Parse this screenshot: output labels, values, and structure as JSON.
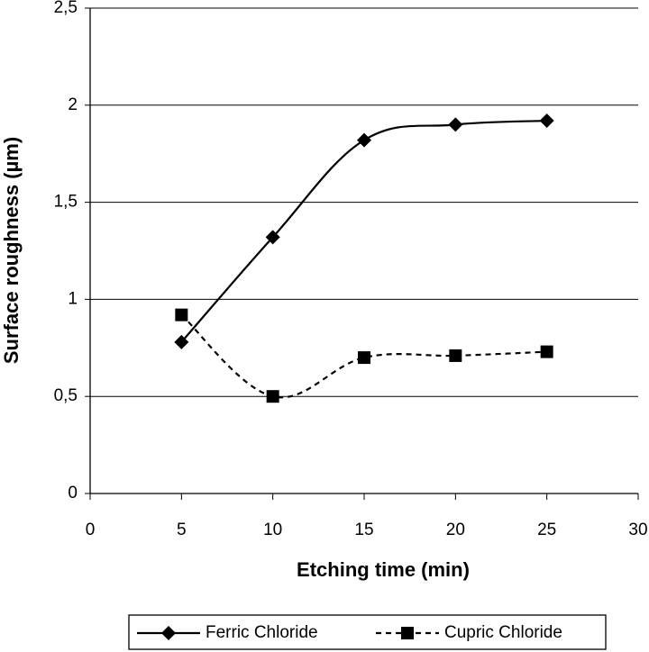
{
  "chart_data": {
    "type": "line",
    "x_label": "Etching time (min)",
    "y_label": "Surface roughness (µm)",
    "x": [
      5,
      10,
      15,
      20,
      25
    ],
    "series": [
      {
        "name": "Ferric Chloride",
        "color": "#000000",
        "values": [
          0.78,
          1.32,
          1.82,
          1.9,
          1.92
        ],
        "marker": "diamond",
        "linestyle": "solid"
      },
      {
        "name": "Cupric Chloride",
        "color": "#000000",
        "values": [
          0.92,
          0.5,
          0.7,
          0.71,
          0.73
        ],
        "marker": "square",
        "linestyle": "dashed"
      }
    ],
    "xlim": [
      0,
      30
    ],
    "xticks": [
      0,
      5,
      10,
      15,
      20,
      25,
      30
    ],
    "ylim": [
      0,
      2.5
    ],
    "yticks": [
      0,
      {
        "value": 0.5,
        "label": "0,5"
      },
      1,
      {
        "value": 1.5,
        "label": "1,5"
      },
      2,
      {
        "value": 2.5,
        "label": "2,5"
      }
    ],
    "grid": true,
    "legend": "bottom"
  }
}
